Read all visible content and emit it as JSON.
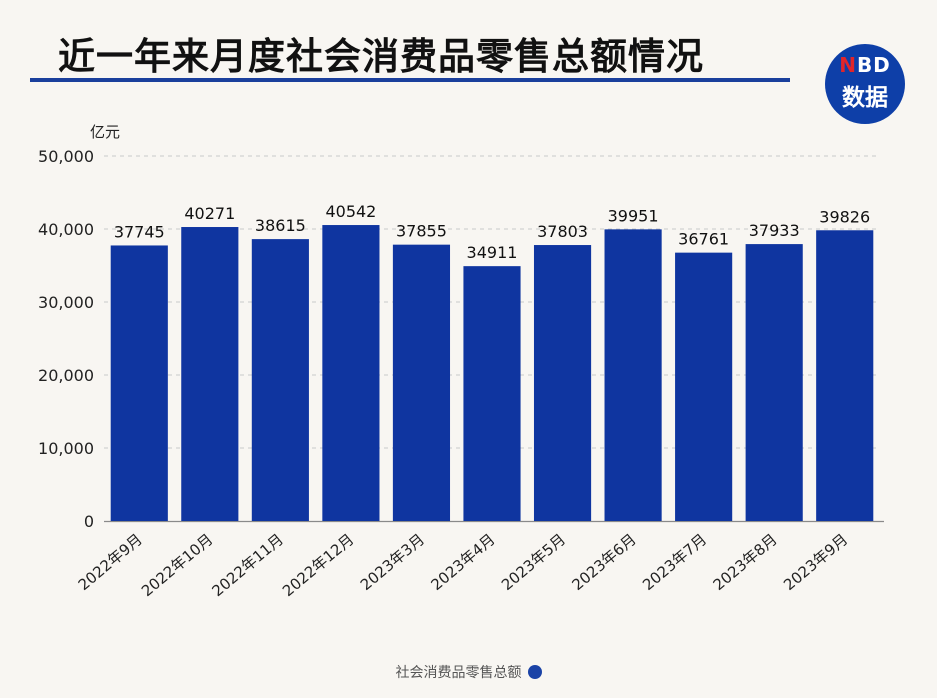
{
  "header": {
    "title": "近一年来月度社会消费品零售总额情况",
    "logo_top_n": "N",
    "logo_top_rest": "BD",
    "logo_bottom": "数据"
  },
  "colors": {
    "bar": "#0f35a0",
    "accent": "#1a3f9c",
    "logo_red": "#e2252a"
  },
  "chart_data": {
    "type": "bar",
    "title": "近一年来月度社会消费品零售总额情况",
    "ylabel": "亿元",
    "xlabel": "",
    "ylim": [
      0,
      50000
    ],
    "yticks": [
      0,
      10000,
      20000,
      30000,
      40000,
      50000
    ],
    "ytick_labels": [
      "0",
      "10,000",
      "20,000",
      "30,000",
      "40,000",
      "50,000"
    ],
    "grid": "horizontal-dashed",
    "legend_position": "bottom-center",
    "categories": [
      "2022年9月",
      "2022年10月",
      "2022年11月",
      "2022年12月",
      "2023年3月",
      "2023年4月",
      "2023年5月",
      "2023年6月",
      "2023年7月",
      "2023年8月",
      "2023年9月"
    ],
    "series": [
      {
        "name": "社会消费品零售总额",
        "values": [
          37745,
          40271,
          38615,
          40542,
          37855,
          34911,
          37803,
          39951,
          36761,
          37933,
          39826
        ]
      }
    ]
  }
}
